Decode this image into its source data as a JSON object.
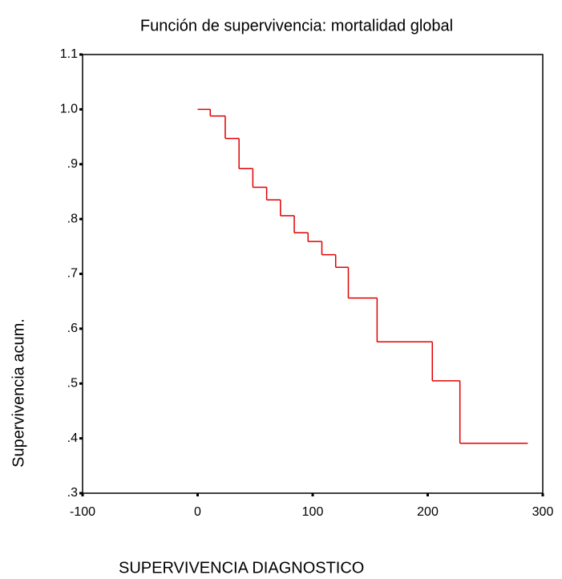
{
  "chart_data": {
    "type": "step",
    "title": "Función de supervivencia: mortalidad global",
    "x_label": "SUPERVIVENCIA DIAGNOSTICO",
    "y_label": "Supervivencia acum.",
    "series": [
      {
        "color": "#e00000",
        "x": [
          0,
          11,
          24,
          36,
          48,
          60,
          72,
          84,
          96,
          108,
          120,
          131,
          156,
          204,
          228,
          287
        ],
        "values": [
          1.0,
          0.988,
          0.947,
          0.892,
          0.858,
          0.835,
          0.806,
          0.775,
          0.759,
          0.735,
          0.712,
          0.656,
          0.576,
          0.505,
          0.391,
          0.391
        ]
      }
    ],
    "xlim": [
      -100,
      300
    ],
    "xticks": [
      -100,
      0,
      100,
      200,
      300
    ],
    "ylim": [
      0.3,
      1.1
    ],
    "yticks": [
      {
        "value": 0.3,
        "label": ".3"
      },
      {
        "value": 0.4,
        "label": ".4"
      },
      {
        "value": 0.5,
        "label": ".5"
      },
      {
        "value": 0.6,
        "label": ".6"
      },
      {
        "value": 0.7,
        "label": ".7"
      },
      {
        "value": 0.8,
        "label": ".8"
      },
      {
        "value": 0.9,
        "label": ".9"
      },
      {
        "value": 1,
        "label": "1.0"
      },
      1.1
    ]
  }
}
